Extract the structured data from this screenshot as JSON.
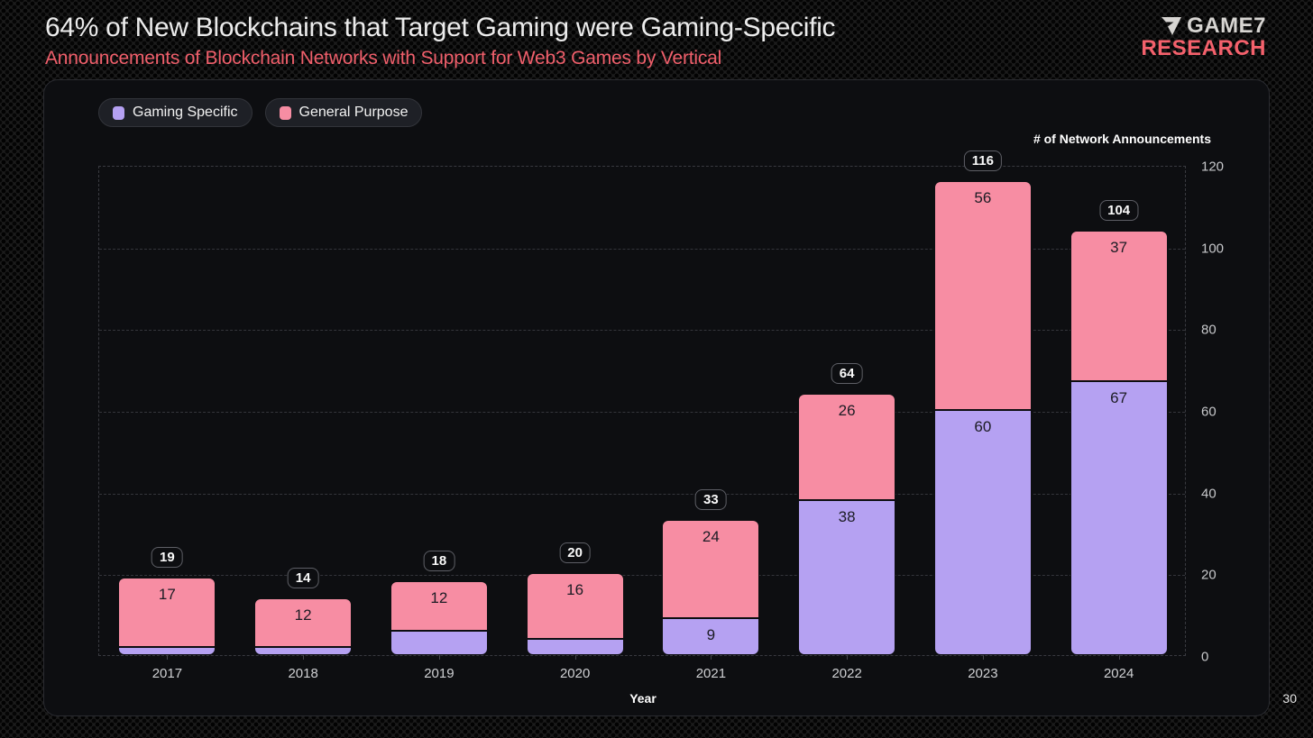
{
  "header": {
    "title": "64% of New Blockchains that Target Gaming were Gaming-Specific",
    "subtitle": "Announcements of Blockchain Networks with Support for Web3 Games by Vertical"
  },
  "logo": {
    "line1": "GAME7",
    "line2": "RESEARCH",
    "accent_color": "#f4616c",
    "text_color": "#d7d5d2"
  },
  "legend": [
    {
      "label": "Gaming Specific",
      "color": "#b5a1f2"
    },
    {
      "label": "General Purpose",
      "color": "#f78da3"
    }
  ],
  "footer": {
    "page_number": "30"
  },
  "chart_data": {
    "type": "bar",
    "stacked": true,
    "title": "Announcements of Blockchain Networks with Support for Web3 Games by Vertical",
    "categories": [
      "2017",
      "2018",
      "2019",
      "2020",
      "2021",
      "2022",
      "2023",
      "2024"
    ],
    "series": [
      {
        "name": "Gaming Specific",
        "color": "#b5a1f2",
        "values": [
          2,
          2,
          6,
          4,
          9,
          38,
          60,
          67
        ]
      },
      {
        "name": "General Purpose",
        "color": "#f78da3",
        "values": [
          17,
          12,
          12,
          16,
          24,
          26,
          56,
          37
        ]
      }
    ],
    "totals": [
      19,
      14,
      18,
      20,
      33,
      64,
      116,
      104
    ],
    "xlabel": "Year",
    "ylabel": "# of Network Announcements",
    "ylim": [
      0,
      120
    ],
    "yticks": [
      0,
      20,
      40,
      60,
      80,
      100,
      120
    ],
    "legend_position": "top-left",
    "grid": "dashed-horizontal"
  }
}
